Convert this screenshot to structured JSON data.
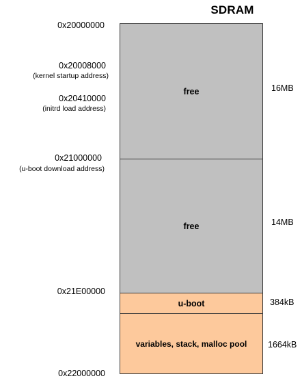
{
  "title": "SDRAM",
  "addresses": [
    {
      "value": "0x20000000",
      "note": ""
    },
    {
      "value": "0x20008000",
      "note": "(kernel startup address)"
    },
    {
      "value": "0x20410000",
      "note": "(initrd load address)"
    },
    {
      "value": "0x21000000",
      "note": "(u-boot download address)"
    },
    {
      "value": "0x21E00000",
      "note": ""
    },
    {
      "value": "0x22000000",
      "note": ""
    }
  ],
  "regions": [
    {
      "label": "free",
      "size": "16MB",
      "color": "#c0c0c0"
    },
    {
      "label": "free",
      "size": "14MB",
      "color": "#c0c0c0"
    },
    {
      "label": "u-boot",
      "size": "384kB",
      "color": "#fdc99c"
    },
    {
      "label": "variables, stack, malloc pool",
      "size": "1664kB",
      "color": "#fdc99c"
    }
  ]
}
